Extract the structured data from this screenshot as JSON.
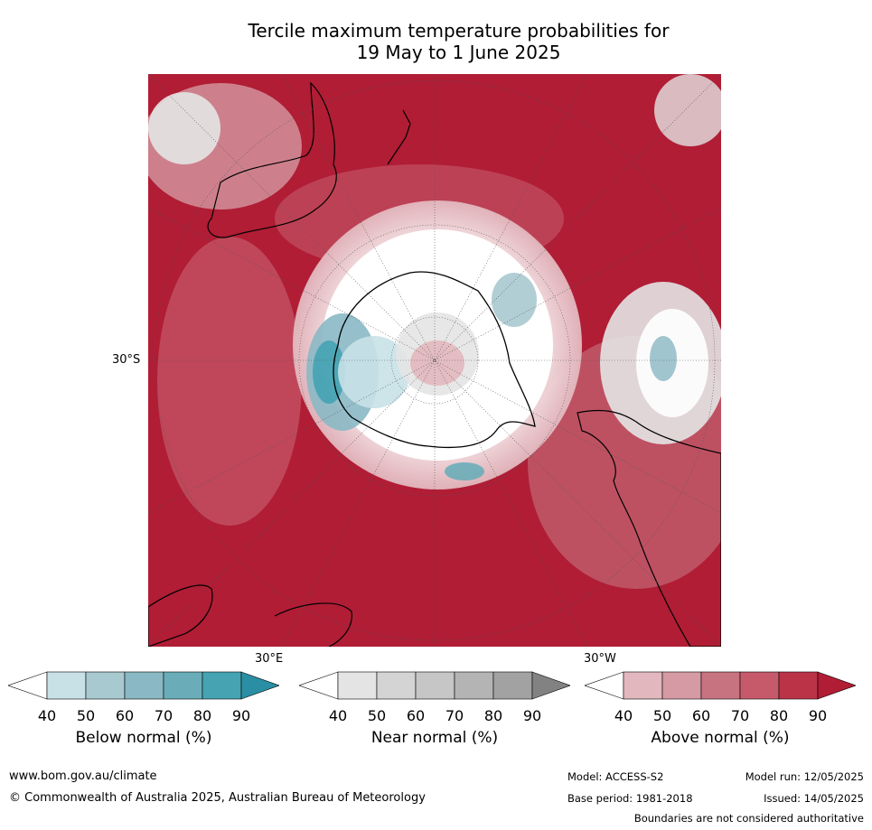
{
  "title": {
    "line1": "Tercile maximum temperature probabilities for",
    "line2": "19 May to 1 June 2025"
  },
  "map": {
    "projection": "south-polar-stereographic",
    "lat_label": "30°S",
    "lon_label_left": "30°E",
    "lon_label_right": "30°W"
  },
  "colorbars": [
    {
      "name": "Below normal (%)",
      "ticks": [
        "40",
        "50",
        "60",
        "70",
        "80",
        "90"
      ],
      "colors": [
        "#ffffff",
        "#c8e1e7",
        "#a8c9cf",
        "#8ab8c4",
        "#6aadb8",
        "#45a3b2",
        "#2a8fa4"
      ]
    },
    {
      "name": "Near normal (%)",
      "ticks": [
        "40",
        "50",
        "60",
        "70",
        "80",
        "90"
      ],
      "colors": [
        "#ffffff",
        "#e4e4e4",
        "#d4d4d4",
        "#c6c6c6",
        "#b4b4b4",
        "#a2a2a2",
        "#828282"
      ]
    },
    {
      "name": "Above normal (%)",
      "ticks": [
        "40",
        "50",
        "60",
        "70",
        "80",
        "90"
      ],
      "colors": [
        "#ffffff",
        "#e2b8be",
        "#d59aa3",
        "#c77480",
        "#c65a6a",
        "#bb3347",
        "#b01d35"
      ]
    }
  ],
  "footer": {
    "website": "www.bom.gov.au/climate",
    "copyright": "© Commonwealth of Australia 2025, Australian Bureau of Meteorology",
    "model": "Model: ACCESS-S2",
    "base_period": "Base period: 1981-2018",
    "model_run": "Model run: 12/05/2025",
    "issued": "Issued: 14/05/2025",
    "disclaimer": "Boundaries are not considered authoritative"
  }
}
